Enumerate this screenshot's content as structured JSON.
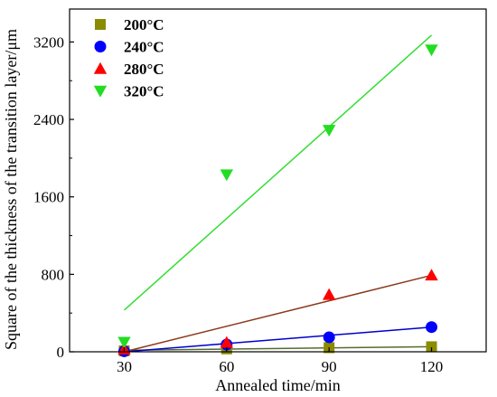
{
  "chart_data": {
    "type": "scatter",
    "xlabel": "Annealed time/min",
    "ylabel": "Square of the thickness of the transition layer/μm",
    "x_ticks": [
      30,
      60,
      90,
      120
    ],
    "y_ticks": [
      0,
      800,
      1600,
      2400,
      3200
    ],
    "xlim": [
      14,
      136
    ],
    "ylim": [
      0,
      3540
    ],
    "grid": false,
    "legend_position": "top-left",
    "series": [
      {
        "name": "200°C",
        "marker": "square",
        "color": "#8b8b00",
        "fit_color": "#556b2f",
        "x": [
          30,
          60,
          90,
          120
        ],
        "y": [
          10,
          30,
          42,
          52
        ],
        "fit": {
          "x": [
            30,
            120
          ],
          "y": [
            15,
            52
          ]
        }
      },
      {
        "name": "240°C",
        "marker": "circle",
        "color": "#0000ff",
        "fit_color": "#0000cd",
        "x": [
          30,
          60,
          90,
          120
        ],
        "y": [
          5,
          75,
          150,
          255
        ],
        "fit": {
          "x": [
            30,
            120
          ],
          "y": [
            0,
            255
          ]
        }
      },
      {
        "name": "280°C",
        "marker": "triangle-up",
        "color": "#ff0000",
        "fit_color": "#8b3a1a",
        "x": [
          30,
          60,
          90,
          120
        ],
        "y": [
          25,
          95,
          590,
          790
        ],
        "fit": {
          "x": [
            30,
            120
          ],
          "y": [
            0,
            790
          ]
        }
      },
      {
        "name": "320°C",
        "marker": "triangle-down",
        "color": "#22dd22",
        "fit_color": "#33dd33",
        "x": [
          30,
          60,
          90,
          120
        ],
        "y": [
          100,
          1830,
          2290,
          3120
        ],
        "fit": {
          "x": [
            30,
            120
          ],
          "y": [
            430,
            3270
          ]
        }
      }
    ]
  }
}
